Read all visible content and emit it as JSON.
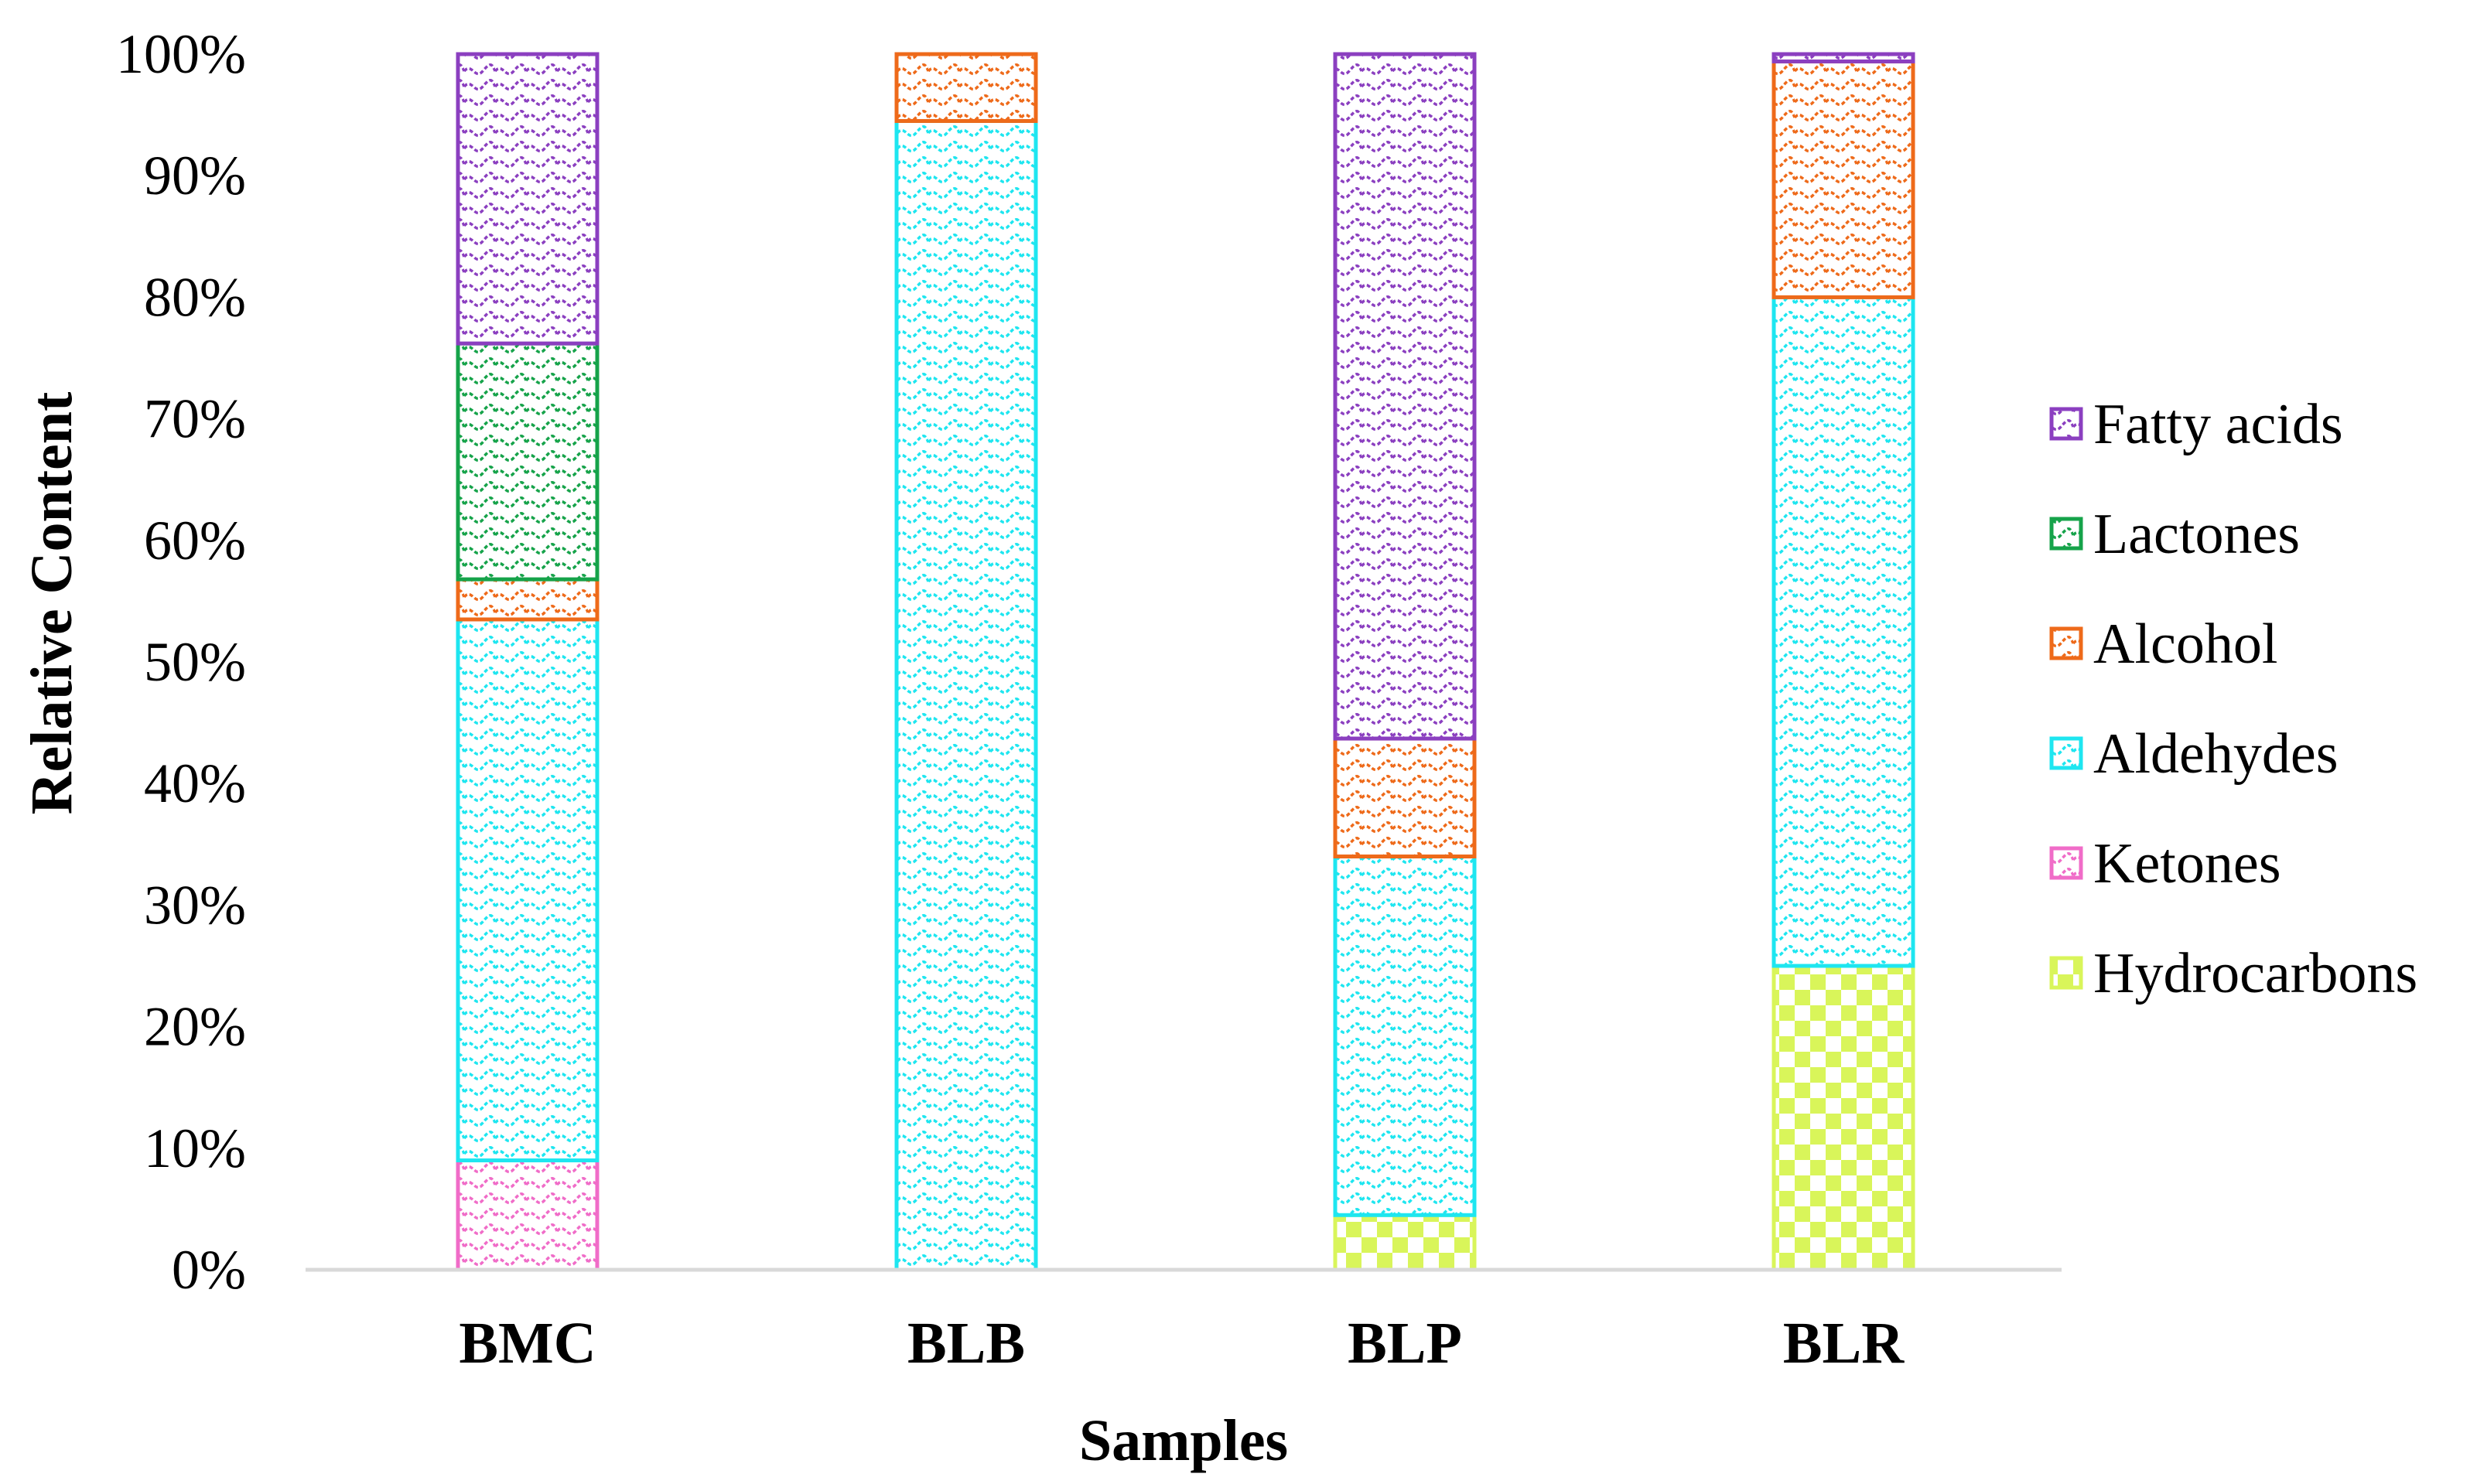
{
  "chart_data": {
    "type": "bar",
    "stacked": true,
    "percent": true,
    "categories": [
      "BMC",
      "BLB",
      "BLP",
      "BLR"
    ],
    "series": [
      {
        "name": "Hydrocarbons",
        "color": "#d9f55a",
        "pattern": "checker",
        "values": [
          0,
          0,
          4.5,
          25
        ]
      },
      {
        "name": "Ketones",
        "color": "#f06cc8",
        "pattern": "wave",
        "values": [
          9,
          0,
          0,
          0
        ]
      },
      {
        "name": "Aldehydes",
        "color": "#1ee6f0",
        "pattern": "wave",
        "values": [
          44.5,
          94.5,
          29.5,
          55
        ]
      },
      {
        "name": "Alcohol",
        "color": "#ee6a1a",
        "pattern": "wave",
        "values": [
          3.3,
          5.5,
          9.7,
          19.4
        ]
      },
      {
        "name": "Lactones",
        "color": "#16a34a",
        "pattern": "wave",
        "values": [
          19.4,
          0,
          0,
          0
        ]
      },
      {
        "name": "Fatty acids",
        "color": "#8b3fc0",
        "pattern": "wave",
        "values": [
          23.8,
          0,
          56.3,
          0.6
        ]
      }
    ],
    "title": "",
    "xlabel": "Samples",
    "ylabel": "Relative Content",
    "ylim": [
      0,
      100
    ],
    "yticks": [
      0,
      10,
      20,
      30,
      40,
      50,
      60,
      70,
      80,
      90,
      100
    ],
    "ytick_labels": [
      "0%",
      "10%",
      "20%",
      "30%",
      "40%",
      "50%",
      "60%",
      "70%",
      "80%",
      "90%",
      "100%"
    ],
    "legend_position": "right",
    "legend_order": [
      "Fatty acids",
      "Lactones",
      "Alcohol",
      "Aldehydes",
      "Ketones",
      "Hydrocarbons"
    ],
    "grid": false
  }
}
